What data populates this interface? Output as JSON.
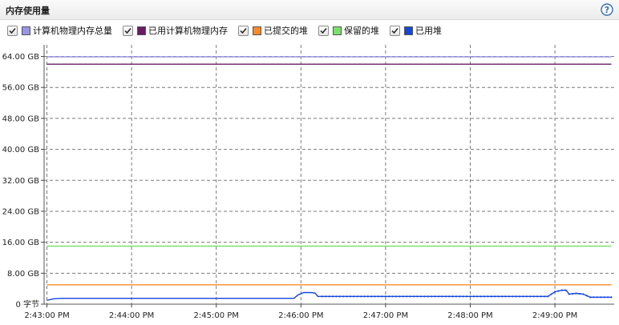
{
  "panel": {
    "title": "内存使用量",
    "help_icon": "question-circle-icon"
  },
  "legend": [
    {
      "label": "计算机物理内存总量",
      "color": "#9a94e8",
      "checked": true
    },
    {
      "label": "已用计算机物理内存",
      "color": "#6b1a68",
      "checked": true
    },
    {
      "label": "已提交的堆",
      "color": "#ff8a2a",
      "checked": true
    },
    {
      "label": "保留的堆",
      "color": "#7be06a",
      "checked": true
    },
    {
      "label": "已用堆",
      "color": "#1446e0",
      "checked": true
    }
  ],
  "chart_data": {
    "type": "line",
    "title": "内存使用量",
    "x_tick_labels": [
      "2:43:00 PM",
      "2:44:00 PM",
      "2:45:00 PM",
      "2:46:00 PM",
      "2:47:00 PM",
      "2:48:00 PM",
      "2:49:00 PM"
    ],
    "y_tick_labels": [
      "0 字节",
      "8.00 GB",
      "16.00 GB",
      "24.00 GB",
      "32.00 GB",
      "40.00 GB",
      "48.00 GB",
      "56.00 GB",
      "64.00 GB"
    ],
    "xlim_seconds_after_2_43_PM": [
      -2,
      402
    ],
    "ylim_gb": [
      0,
      67
    ],
    "grid": true,
    "series": [
      {
        "name": "计算机物理内存总量",
        "color": "#9a94e8",
        "x": [
          0,
          400
        ],
        "y": [
          63.9,
          63.9
        ]
      },
      {
        "name": "已用计算机物理内存",
        "color": "#6b1a68",
        "x": [
          0,
          400
        ],
        "y": [
          62.0,
          62.0
        ]
      },
      {
        "name": "已提交的堆",
        "color": "#ff8a2a",
        "x": [
          0,
          400
        ],
        "y": [
          5.0,
          5.0
        ]
      },
      {
        "name": "保留的堆",
        "color": "#7be06a",
        "x": [
          0,
          400
        ],
        "y": [
          15.0,
          15.0
        ]
      },
      {
        "name": "已用堆",
        "color": "#1446e0",
        "x": [
          0,
          5,
          10,
          60,
          120,
          175,
          178,
          182,
          187,
          190,
          192,
          195,
          240,
          300,
          355,
          360,
          365,
          368,
          370,
          375,
          380,
          385,
          400
        ],
        "y": [
          1.0,
          1.4,
          1.5,
          1.5,
          1.5,
          1.5,
          2.4,
          3.0,
          3.0,
          2.9,
          2.0,
          2.0,
          2.0,
          2.0,
          2.0,
          3.2,
          3.6,
          3.6,
          2.6,
          2.8,
          2.6,
          1.8,
          1.8
        ]
      }
    ]
  }
}
